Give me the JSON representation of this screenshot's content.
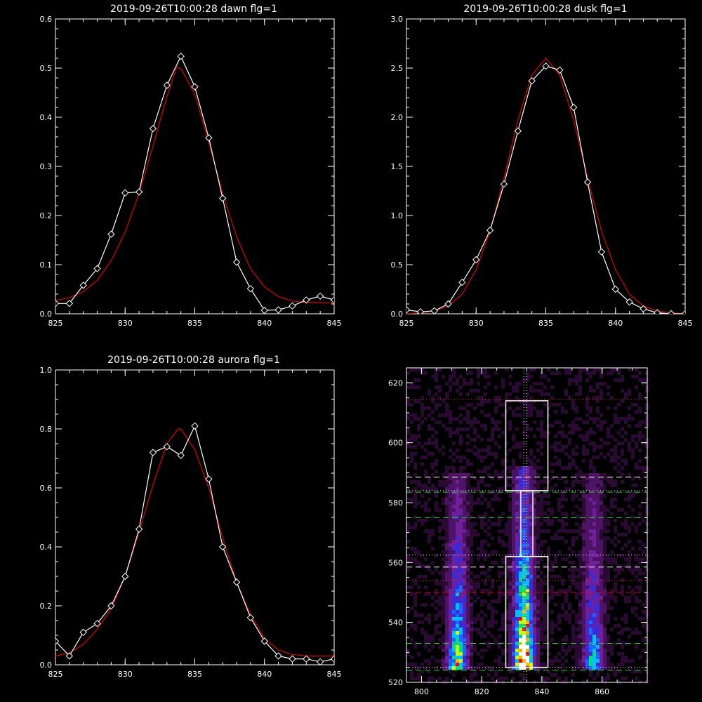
{
  "chart_data": [
    {
      "type": "line",
      "title": "2019-09-26T10:00:28 dawn flg=1",
      "xlim": [
        825,
        845
      ],
      "ylim": [
        0,
        0.6
      ],
      "xticks": [
        "825",
        "830",
        "835",
        "840",
        "845"
      ],
      "yticks": [
        "0.0",
        "0.1",
        "0.2",
        "0.3",
        "0.4",
        "0.5",
        "0.6"
      ],
      "grid": false,
      "series": [
        {
          "role": "data",
          "color": "#ffffff",
          "marker": "diamond",
          "x": [
            825,
            826,
            827,
            828,
            829,
            830,
            831,
            832,
            833,
            834,
            835,
            836,
            837,
            838,
            839,
            840,
            841,
            842,
            843,
            844,
            845
          ],
          "y": [
            0.021,
            0.021,
            0.058,
            0.092,
            0.162,
            0.246,
            0.248,
            0.377,
            0.465,
            0.524,
            0.462,
            0.358,
            0.235,
            0.105,
            0.051,
            0.007,
            0.008,
            0.016,
            0.028,
            0.036,
            0.028
          ]
        },
        {
          "role": "fit",
          "color": "#dd0000",
          "marker": "none",
          "x": [
            825,
            826,
            827,
            828,
            829,
            830,
            831,
            832,
            833,
            833.7,
            834,
            835,
            836,
            837,
            838,
            839,
            840,
            841,
            842,
            843,
            844,
            845
          ],
          "y": [
            0.027,
            0.033,
            0.045,
            0.068,
            0.108,
            0.166,
            0.245,
            0.341,
            0.442,
            0.502,
            0.499,
            0.447,
            0.349,
            0.245,
            0.156,
            0.092,
            0.055,
            0.035,
            0.026,
            0.023,
            0.022,
            0.022
          ]
        }
      ]
    },
    {
      "type": "line",
      "title": "2019-09-26T10:00:28 dusk flg=1",
      "xlim": [
        825,
        845
      ],
      "ylim": [
        0,
        3.0
      ],
      "xticks": [
        "825",
        "830",
        "835",
        "840",
        "845"
      ],
      "yticks": [
        "0.0",
        "0.5",
        "1.0",
        "1.5",
        "2.0",
        "2.5",
        "3.0"
      ],
      "grid": false,
      "series": [
        {
          "role": "data",
          "color": "#ffffff",
          "marker": "diamond",
          "x": [
            825,
            826,
            827,
            828,
            829,
            830,
            831,
            832,
            833,
            834,
            835,
            836,
            837,
            838,
            839,
            840,
            841,
            842,
            843,
            844,
            845
          ],
          "y": [
            0.04,
            0.02,
            0.03,
            0.1,
            0.32,
            0.55,
            0.85,
            1.32,
            1.86,
            2.37,
            2.52,
            2.48,
            2.1,
            1.34,
            0.63,
            0.25,
            0.12,
            0.05,
            0.01,
            0.0,
            0.0
          ]
        },
        {
          "role": "fit",
          "color": "#dd0000",
          "marker": "none",
          "x": [
            825,
            826,
            827,
            828,
            829,
            830,
            831,
            832,
            833,
            834,
            835,
            836,
            837,
            838,
            839,
            840,
            841,
            842,
            843,
            844,
            845
          ],
          "y": [
            0.0,
            0.01,
            0.03,
            0.08,
            0.2,
            0.45,
            0.84,
            1.38,
            1.97,
            2.43,
            2.6,
            2.43,
            1.97,
            1.38,
            0.84,
            0.45,
            0.2,
            0.08,
            0.03,
            0.01,
            0.0
          ]
        }
      ]
    },
    {
      "type": "line",
      "title": "2019-09-26T10:00:28 aurora flg=1",
      "xlim": [
        825,
        845
      ],
      "ylim": [
        0,
        1.0
      ],
      "xticks": [
        "825",
        "830",
        "835",
        "840",
        "845"
      ],
      "yticks": [
        "0.0",
        "0.2",
        "0.4",
        "0.6",
        "0.8",
        "1.0"
      ],
      "grid": false,
      "series": [
        {
          "role": "data",
          "color": "#ffffff",
          "marker": "diamond",
          "x": [
            825,
            826,
            827,
            828,
            829,
            830,
            831,
            832,
            833,
            834,
            835,
            836,
            837,
            838,
            839,
            840,
            841,
            842,
            843,
            844,
            845
          ],
          "y": [
            0.08,
            0.03,
            0.11,
            0.14,
            0.2,
            0.3,
            0.46,
            0.72,
            0.74,
            0.71,
            0.81,
            0.63,
            0.4,
            0.28,
            0.16,
            0.08,
            0.03,
            0.02,
            0.02,
            0.01,
            0.02
          ]
        },
        {
          "role": "fit",
          "color": "#dd0000",
          "marker": "none",
          "x": [
            825,
            826,
            827,
            828,
            829,
            830,
            831,
            832,
            833,
            833.8,
            834,
            835,
            836,
            837,
            838,
            839,
            840,
            841,
            842,
            843,
            844,
            845
          ],
          "y": [
            0.03,
            0.04,
            0.07,
            0.12,
            0.19,
            0.3,
            0.45,
            0.61,
            0.75,
            0.8,
            0.8,
            0.73,
            0.6,
            0.43,
            0.28,
            0.17,
            0.09,
            0.05,
            0.035,
            0.03,
            0.03,
            0.03
          ]
        }
      ]
    },
    {
      "type": "heatmap",
      "xlim": [
        795,
        875
      ],
      "ylim": [
        520,
        625
      ],
      "xticks": [
        "800",
        "820",
        "840",
        "860"
      ],
      "yticks": [
        "520",
        "540",
        "560",
        "580",
        "600",
        "620"
      ],
      "grid": false,
      "colormap": [
        "#000000",
        "#2a0a33",
        "#4d1466",
        "#6e1f99",
        "#3a2bd8",
        "#1e66ff",
        "#00c0ff",
        "#00e07a",
        "#c8ff00",
        "#ffb000",
        "#ff0000",
        "#ffffff"
      ],
      "emission_columns": [
        {
          "x_center": 812,
          "x_width": 3,
          "y_from": 524,
          "y_to": 590,
          "peak_y": 530,
          "peak_level": 0.6
        },
        {
          "x_center": 834,
          "x_width": 3,
          "y_from": 524,
          "y_to": 592,
          "peak_y": 529,
          "peak_level": 1.0
        },
        {
          "x_center": 857,
          "x_width": 3,
          "y_from": 524,
          "y_to": 590,
          "peak_y": 530,
          "peak_level": 0.45
        }
      ],
      "boxes": [
        {
          "color": "#ffffff",
          "x": [
            828,
            842
          ],
          "y": [
            525,
            562
          ]
        },
        {
          "color": "#ffffff",
          "x": [
            833,
            837
          ],
          "y": [
            562,
            584
          ]
        },
        {
          "color": "#ffffff",
          "x": [
            828,
            842
          ],
          "y": [
            584,
            614
          ]
        }
      ],
      "vlines": [
        {
          "x": 834,
          "color": "#ffffff",
          "style": "dotted"
        },
        {
          "x": 835,
          "color": "#ffffff",
          "style": "dotted"
        }
      ],
      "hlines": [
        {
          "y": 614.5,
          "color": "#ff3333",
          "style": "dotted"
        },
        {
          "y": 588.5,
          "color": "#ffffff",
          "style": "dashed"
        },
        {
          "y": 584,
          "color": "#ffffff",
          "style": "dotted"
        },
        {
          "y": 583.5,
          "color": "#22cc22",
          "style": "dashed"
        },
        {
          "y": 575,
          "color": "#22cc22",
          "style": "dashed"
        },
        {
          "y": 562.5,
          "color": "#ffffff",
          "style": "dotted"
        },
        {
          "y": 558.5,
          "color": "#ffffff",
          "style": "dashed"
        },
        {
          "y": 554,
          "color": "#ff3333",
          "style": "dotted"
        },
        {
          "y": 550,
          "color": "#dd0000",
          "style": "dashed"
        },
        {
          "y": 533,
          "color": "#22cc22",
          "style": "dashed"
        },
        {
          "y": 525,
          "color": "#ffffff",
          "style": "dotted"
        },
        {
          "y": 524,
          "color": "#22cc22",
          "style": "dashed"
        }
      ]
    }
  ]
}
